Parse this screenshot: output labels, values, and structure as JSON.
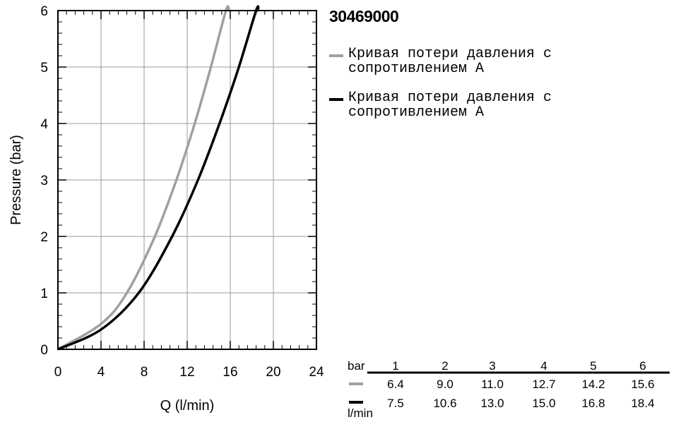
{
  "product_code": "30469000",
  "legend": {
    "items": [
      {
        "label": "Кривая потери давления с сопротивлением А",
        "color": "#a0a0a0"
      },
      {
        "label": "Кривая потери давления с сопротивлением А",
        "color": "#000000"
      }
    ]
  },
  "chart_data": {
    "type": "line",
    "xlabel": "Q (l/min)",
    "ylabel": "Pressure (bar)",
    "xlim": [
      0,
      24
    ],
    "ylim": [
      0,
      6
    ],
    "x_ticks": [
      0,
      4,
      8,
      12,
      16,
      20,
      24
    ],
    "y_ticks": [
      0,
      1,
      2,
      3,
      4,
      5,
      6
    ],
    "grid": true,
    "series": [
      {
        "color": "#a0a0a0",
        "x": [
          0,
          4,
          6.4,
          9.0,
          11.0,
          12.7,
          14.2,
          15.6,
          15.9
        ],
        "y": [
          0,
          0.45,
          1,
          2,
          3,
          4,
          5,
          6,
          6.0
        ]
      },
      {
        "color": "#000000",
        "x": [
          0,
          4,
          7.5,
          10.6,
          13.0,
          15.0,
          16.8,
          18.4,
          18.6
        ],
        "y": [
          0,
          0.35,
          1,
          2,
          3,
          4,
          5,
          6,
          6.0
        ]
      }
    ]
  },
  "table": {
    "header_unit": "bar",
    "row_unit": "l/min",
    "columns": [
      "1",
      "2",
      "3",
      "4",
      "5",
      "6"
    ],
    "rows": [
      {
        "color": "#a0a0a0",
        "values": [
          "6.4",
          "9.0",
          "11.0",
          "12.7",
          "14.2",
          "15.6"
        ]
      },
      {
        "color": "#000000",
        "values": [
          "7.5",
          "10.6",
          "13.0",
          "15.0",
          "16.8",
          "18.4"
        ]
      }
    ]
  }
}
